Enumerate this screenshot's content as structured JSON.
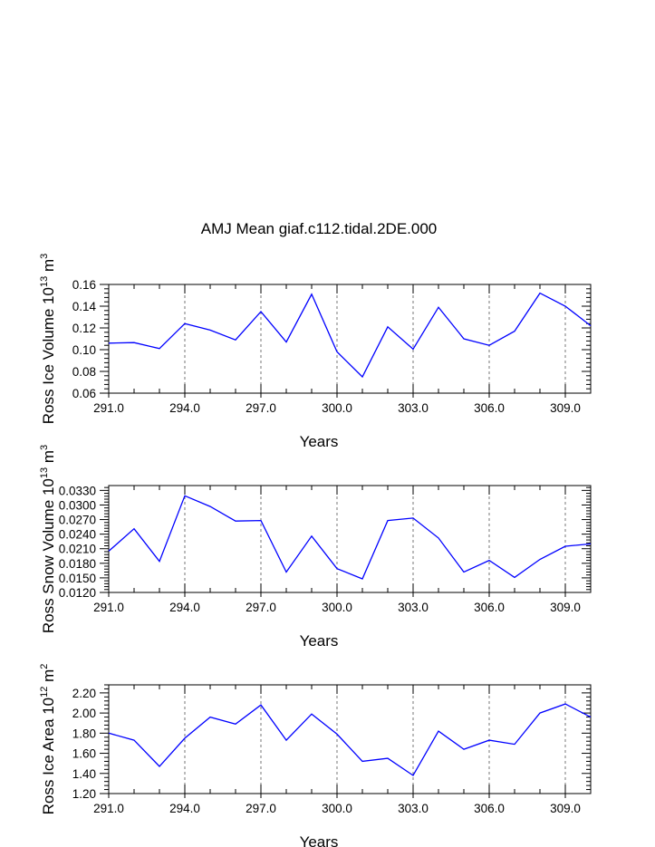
{
  "title": "AMJ Mean giaf.c112.tidal.2DE.000",
  "chart_data": [
    {
      "type": "line",
      "name": "ross-ice-volume",
      "ylabel_main": "Ross Ice Volume 10",
      "ylabel_exp": "13",
      "ylabel_unit": "m",
      "ylabel_unit_exp": "3",
      "xlabel": "Years",
      "xlim": [
        291,
        310
      ],
      "ylim": [
        0.06,
        0.16
      ],
      "xticks": [
        291,
        294,
        297,
        300,
        303,
        306,
        309
      ],
      "xtick_labels": [
        "291.0",
        "294.0",
        "297.0",
        "300.0",
        "303.0",
        "306.0",
        "309.0"
      ],
      "yticks": [
        0.06,
        0.08,
        0.1,
        0.12,
        0.14,
        0.16
      ],
      "ytick_labels": [
        "0.06",
        "0.08",
        "0.10",
        "0.12",
        "0.14",
        "0.16"
      ],
      "color": "#0000ff",
      "x": [
        291,
        292,
        293,
        294,
        295,
        296,
        297,
        298,
        299,
        300,
        301,
        302,
        303,
        304,
        305,
        306,
        307,
        308,
        309,
        310
      ],
      "y": [
        0.106,
        0.1065,
        0.101,
        0.124,
        0.118,
        0.109,
        0.135,
        0.107,
        0.151,
        0.098,
        0.075,
        0.121,
        0.1005,
        0.139,
        0.11,
        0.104,
        0.117,
        0.152,
        0.14,
        0.122
      ]
    },
    {
      "type": "line",
      "name": "ross-snow-volume",
      "ylabel_main": "Ross Snow Volume 10",
      "ylabel_exp": "13",
      "ylabel_unit": "m",
      "ylabel_unit_exp": "3",
      "xlabel": "Years",
      "xlim": [
        291,
        310
      ],
      "ylim": [
        0.012,
        0.034
      ],
      "xticks": [
        291,
        294,
        297,
        300,
        303,
        306,
        309
      ],
      "xtick_labels": [
        "291.0",
        "294.0",
        "297.0",
        "300.0",
        "303.0",
        "306.0",
        "309.0"
      ],
      "yticks": [
        0.012,
        0.015,
        0.018,
        0.021,
        0.024,
        0.027,
        0.03,
        0.033
      ],
      "ytick_labels": [
        "0.0120",
        "0.0150",
        "0.0180",
        "0.0210",
        "0.0240",
        "0.0270",
        "0.0300",
        "0.0330"
      ],
      "color": "#0000ff",
      "x": [
        291,
        292,
        293,
        294,
        295,
        296,
        297,
        298,
        299,
        300,
        301,
        302,
        303,
        304,
        305,
        306,
        307,
        308,
        309,
        310
      ],
      "y": [
        0.0205,
        0.0251,
        0.0184,
        0.0319,
        0.0297,
        0.0267,
        0.0268,
        0.0162,
        0.0236,
        0.0169,
        0.0148,
        0.0268,
        0.0273,
        0.0232,
        0.0162,
        0.0186,
        0.0151,
        0.0188,
        0.0215,
        0.022
      ]
    },
    {
      "type": "line",
      "name": "ross-ice-area",
      "ylabel_main": "Ross Ice Area 10",
      "ylabel_exp": "12",
      "ylabel_unit": "m",
      "ylabel_unit_exp": "2",
      "xlabel": "Years",
      "xlim": [
        291,
        310
      ],
      "ylim": [
        1.2,
        2.28
      ],
      "xticks": [
        291,
        294,
        297,
        300,
        303,
        306,
        309
      ],
      "xtick_labels": [
        "291.0",
        "294.0",
        "297.0",
        "300.0",
        "303.0",
        "306.0",
        "309.0"
      ],
      "yticks": [
        1.2,
        1.4,
        1.6,
        1.8,
        2.0,
        2.2
      ],
      "ytick_labels": [
        "1.20",
        "1.40",
        "1.60",
        "1.80",
        "2.00",
        "2.20"
      ],
      "color": "#0000ff",
      "x": [
        291,
        292,
        293,
        294,
        295,
        296,
        297,
        298,
        299,
        300,
        301,
        302,
        303,
        304,
        305,
        306,
        307,
        308,
        309,
        310
      ],
      "y": [
        1.8,
        1.73,
        1.47,
        1.75,
        1.96,
        1.89,
        2.08,
        1.73,
        1.99,
        1.79,
        1.52,
        1.55,
        1.38,
        1.82,
        1.64,
        1.73,
        1.69,
        2.0,
        2.09,
        1.96
      ]
    }
  ]
}
